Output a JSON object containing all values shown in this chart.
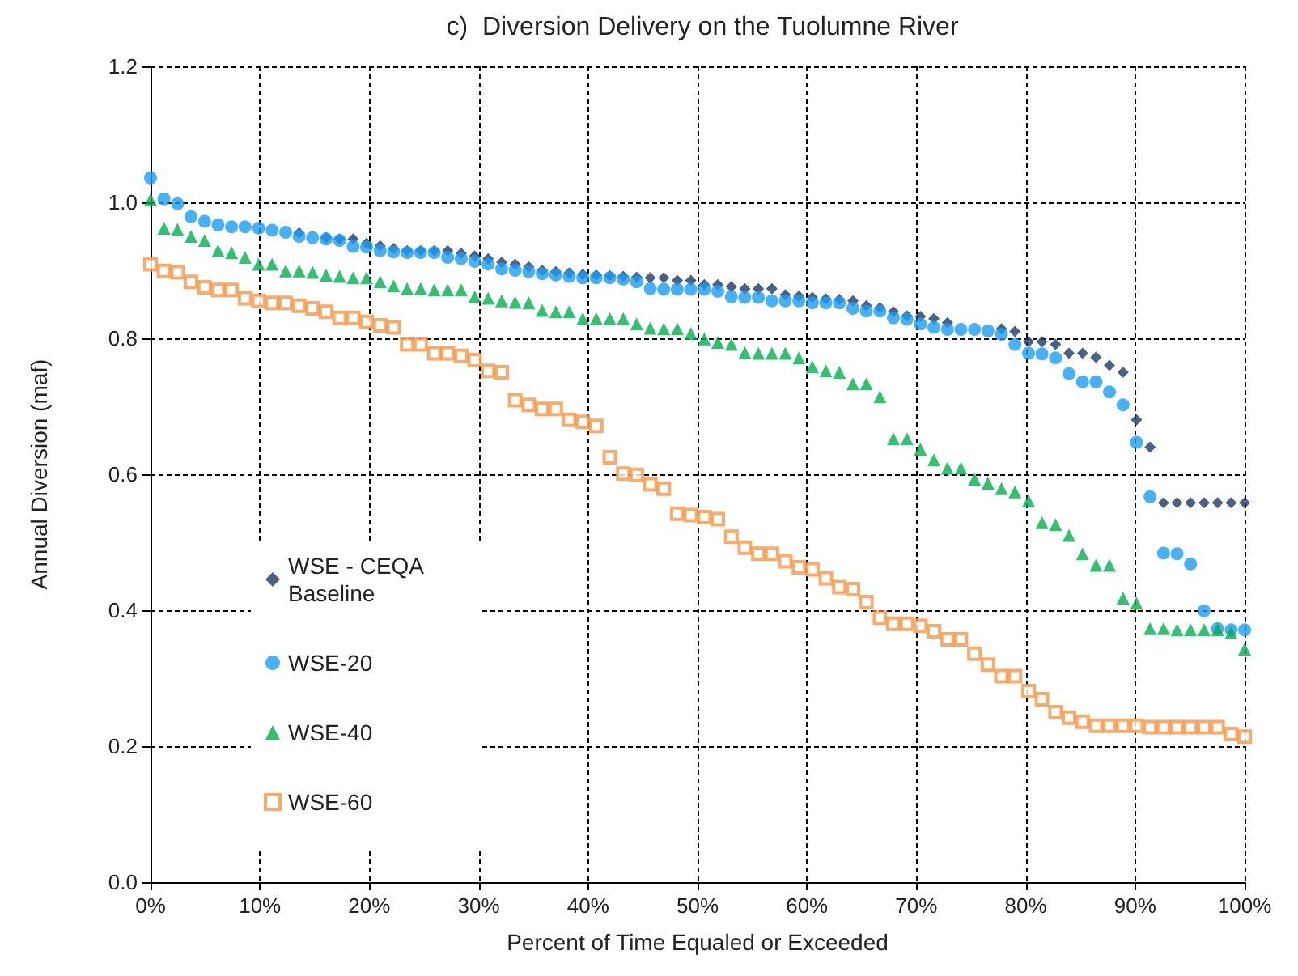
{
  "chart_data": {
    "type": "scatter",
    "title": "c)  Diversion Delivery on the Tuolumne River",
    "xlabel": "Percent of Time Equaled or Exceeded",
    "ylabel": "Annual Diversion (maf)",
    "x": [
      0,
      1.23,
      2.47,
      3.7,
      4.94,
      6.17,
      7.41,
      8.64,
      9.88,
      11.11,
      12.35,
      13.58,
      14.81,
      16.05,
      17.28,
      18.52,
      19.75,
      20.99,
      22.22,
      23.46,
      24.69,
      25.93,
      27.16,
      28.4,
      29.63,
      30.86,
      32.1,
      33.33,
      34.57,
      35.8,
      37.04,
      38.27,
      39.51,
      40.74,
      41.98,
      43.21,
      44.44,
      45.68,
      46.91,
      48.15,
      49.38,
      50.62,
      51.85,
      53.09,
      54.32,
      55.56,
      56.79,
      58.02,
      59.26,
      60.49,
      61.73,
      62.96,
      64.2,
      65.43,
      66.67,
      67.9,
      69.14,
      70.37,
      71.6,
      72.84,
      74.07,
      75.31,
      76.54,
      77.78,
      79.01,
      80.25,
      81.48,
      82.72,
      83.95,
      85.19,
      86.42,
      87.65,
      88.89,
      90.12,
      91.36,
      92.59,
      93.83,
      95.06,
      96.3,
      97.53,
      98.77,
      100
    ],
    "series": [
      {
        "name": "WSE - CEQA Baseline",
        "color": "#1f3864",
        "marker": "diamond",
        "values": [
          null,
          null,
          null,
          null,
          null,
          null,
          null,
          null,
          null,
          null,
          null,
          0.955,
          null,
          0.948,
          0.946,
          0.946,
          0.94,
          0.936,
          0.932,
          0.929,
          0.929,
          0.929,
          0.929,
          0.925,
          0.921,
          0.917,
          0.912,
          0.909,
          0.905,
          0.9,
          0.898,
          0.896,
          0.894,
          0.893,
          0.892,
          0.891,
          0.89,
          0.889,
          0.889,
          0.885,
          0.885,
          0.879,
          0.879,
          0.876,
          0.873,
          0.873,
          0.873,
          0.864,
          0.862,
          0.86,
          0.858,
          0.857,
          0.855,
          0.848,
          0.845,
          0.839,
          0.833,
          0.832,
          0.829,
          0.823,
          null,
          null,
          null,
          0.814,
          0.81,
          0.795,
          0.795,
          0.791,
          0.778,
          0.778,
          0.772,
          0.76,
          0.75,
          0.68,
          0.64,
          0.558,
          0.558,
          0.558,
          0.558,
          0.558,
          0.558,
          0.558
        ]
      },
      {
        "name": "WSE-20",
        "color": "#1a9cf5",
        "marker": "circle",
        "values": [
          1.036,
          1.005,
          0.998,
          0.979,
          0.972,
          0.967,
          0.964,
          0.964,
          0.962,
          0.959,
          0.956,
          0.95,
          0.948,
          0.946,
          0.944,
          0.935,
          0.934,
          0.929,
          0.927,
          0.926,
          0.926,
          0.926,
          0.919,
          0.917,
          0.913,
          0.909,
          0.902,
          0.9,
          0.898,
          0.895,
          0.893,
          0.891,
          0.889,
          0.889,
          0.889,
          0.887,
          0.883,
          0.873,
          0.872,
          0.872,
          0.872,
          0.872,
          0.869,
          0.861,
          0.86,
          0.86,
          0.855,
          0.855,
          0.855,
          0.852,
          0.852,
          0.852,
          0.844,
          0.84,
          0.84,
          0.83,
          0.828,
          0.821,
          0.816,
          0.813,
          0.813,
          0.813,
          0.811,
          0.806,
          0.791,
          0.778,
          0.777,
          0.771,
          0.748,
          0.736,
          0.736,
          0.721,
          0.702,
          0.647,
          0.567,
          0.484,
          0.483,
          0.468,
          0.399,
          0.373,
          0.371,
          0.371
        ]
      },
      {
        "name": "WSE-40",
        "color": "#00b050",
        "marker": "triangle",
        "values": [
          1.004,
          0.962,
          0.96,
          0.95,
          0.944,
          0.929,
          0.926,
          0.919,
          0.909,
          0.909,
          0.899,
          0.899,
          0.897,
          0.893,
          0.891,
          0.889,
          0.889,
          0.883,
          0.877,
          0.873,
          0.873,
          0.871,
          0.871,
          0.871,
          0.861,
          0.859,
          0.855,
          0.853,
          0.852,
          0.841,
          0.839,
          0.839,
          0.829,
          0.829,
          0.829,
          0.829,
          0.821,
          0.815,
          0.814,
          0.814,
          0.807,
          0.799,
          0.794,
          0.791,
          0.779,
          0.778,
          0.778,
          0.778,
          0.771,
          0.758,
          0.752,
          0.75,
          0.733,
          0.733,
          0.714,
          0.652,
          0.652,
          0.637,
          0.621,
          0.609,
          0.609,
          0.593,
          0.587,
          0.579,
          0.574,
          0.561,
          0.529,
          0.526,
          0.51,
          0.483,
          0.466,
          0.466,
          0.418,
          0.41,
          0.373,
          0.373,
          0.371,
          0.371,
          0.371,
          0.371,
          0.367,
          0.343
        ]
      },
      {
        "name": "WSE-60",
        "color": "#f79646",
        "marker": "square",
        "values": [
          0.909,
          0.899,
          0.897,
          0.883,
          0.875,
          0.871,
          0.871,
          0.859,
          0.855,
          0.852,
          0.852,
          0.848,
          0.844,
          0.839,
          0.83,
          0.83,
          0.824,
          0.819,
          0.816,
          0.791,
          0.791,
          0.778,
          0.778,
          0.774,
          0.768,
          0.752,
          0.75,
          0.709,
          0.702,
          0.696,
          0.696,
          0.68,
          0.677,
          0.671,
          0.625,
          0.601,
          0.599,
          0.585,
          0.579,
          0.542,
          0.54,
          0.537,
          0.534,
          0.508,
          0.492,
          0.483,
          0.483,
          0.472,
          0.463,
          0.46,
          0.447,
          0.434,
          0.431,
          0.412,
          0.389,
          0.38,
          0.38,
          0.377,
          0.369,
          0.357,
          0.357,
          0.336,
          0.32,
          0.303,
          0.303,
          0.281,
          0.269,
          0.25,
          0.242,
          0.236,
          0.23,
          0.23,
          0.23,
          0.23,
          0.228,
          0.228,
          0.228,
          0.228,
          0.228,
          0.228,
          0.218,
          0.214
        ]
      }
    ],
    "xlim": [
      0,
      100
    ],
    "xticks": [
      {
        "value": 0,
        "label": "0%"
      },
      {
        "value": 10,
        "label": "10%"
      },
      {
        "value": 20,
        "label": "20%"
      },
      {
        "value": 30,
        "label": "30%"
      },
      {
        "value": 40,
        "label": "40%"
      },
      {
        "value": 50,
        "label": "50%"
      },
      {
        "value": 60,
        "label": "60%"
      },
      {
        "value": 70,
        "label": "70%"
      },
      {
        "value": 80,
        "label": "80%"
      },
      {
        "value": 90,
        "label": "90%"
      },
      {
        "value": 100,
        "label": "100%"
      }
    ],
    "ylim": [
      0,
      1.2
    ],
    "yticks": [
      {
        "value": 0,
        "label": "0.0"
      },
      {
        "value": 0.2,
        "label": "0.2"
      },
      {
        "value": 0.4,
        "label": "0.4"
      },
      {
        "value": 0.6,
        "label": "0.6"
      },
      {
        "value": 0.8,
        "label": "0.8"
      },
      {
        "value": 1,
        "label": "1.0"
      },
      {
        "value": 1.2,
        "label": "1.2"
      }
    ],
    "grid": true,
    "legend": "left"
  }
}
